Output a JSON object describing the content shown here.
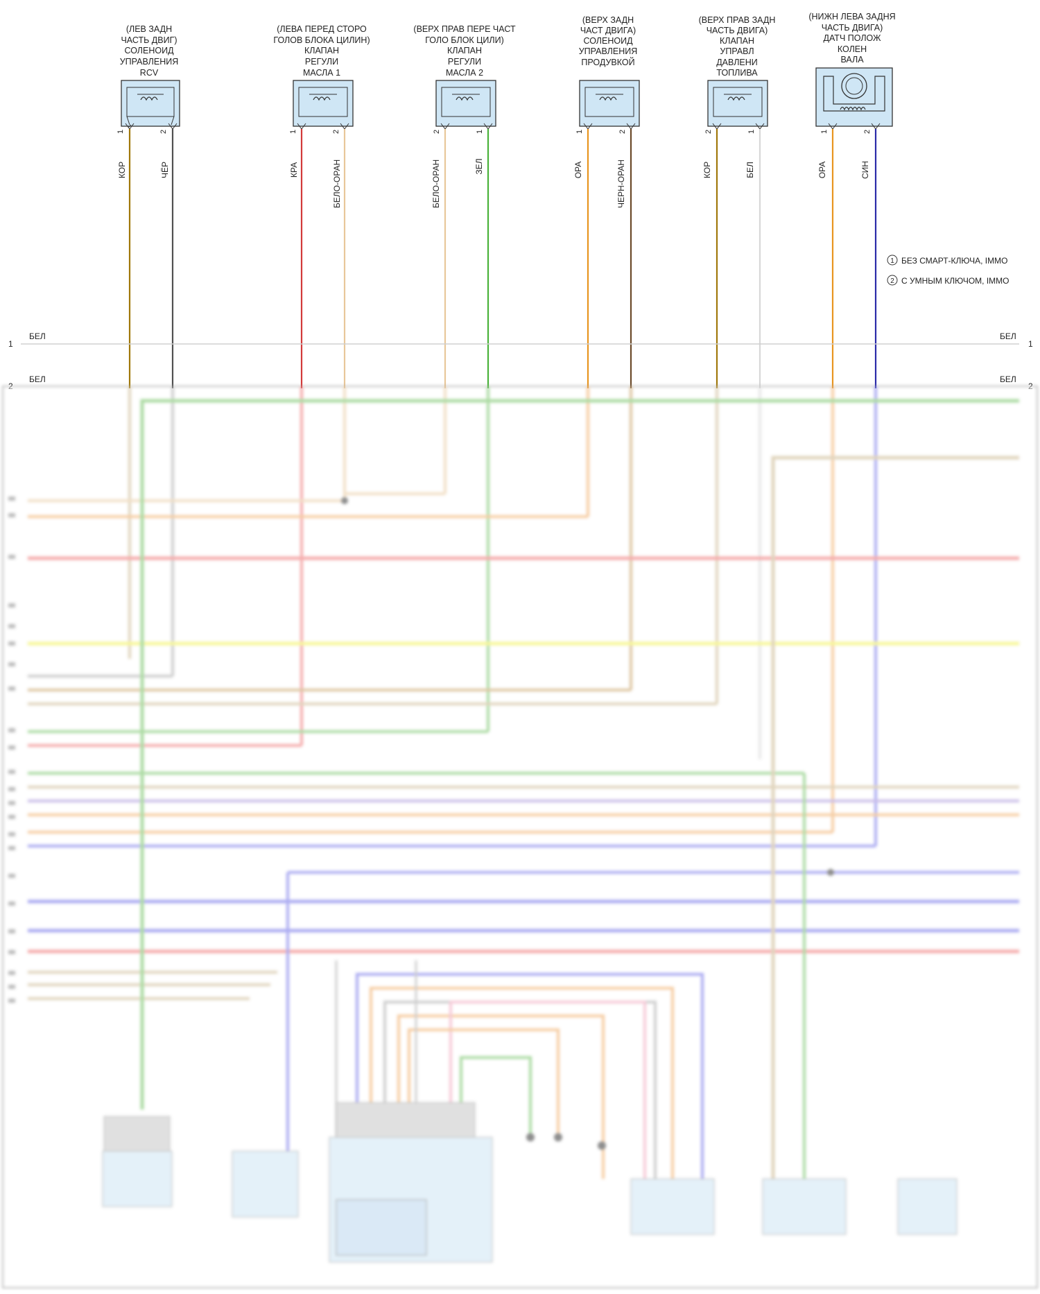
{
  "components": [
    {
      "id": "c1",
      "lines": [
        "(ЛЕВ ЗАДН",
        "ЧАСТЬ ДВИГ)",
        "СОЛЕНОИД",
        "УПРАВЛЕНИЯ",
        "RCV"
      ],
      "pins": [
        "1",
        "2"
      ],
      "wires": [
        {
          "label": "КОР",
          "color": "#a0780a"
        },
        {
          "label": "ЧЁР",
          "color": "#505050"
        }
      ]
    },
    {
      "id": "c2",
      "lines": [
        "(ЛЕВА ПЕРЕД СТОРО",
        "ГОЛОВ БЛОКА ЦИЛИН)",
        "КЛАПАН",
        "РЕГУЛИ",
        "МАСЛА 1"
      ],
      "pins": [
        "1",
        "2"
      ],
      "wires": [
        {
          "label": "КРА",
          "color": "#d23a3a"
        },
        {
          "label": "БЕЛО-ОРАН",
          "color": "#e8c79a"
        }
      ]
    },
    {
      "id": "c3",
      "lines": [
        "(ВЕРХ ПРАВ ПЕРЕ ЧАСТ",
        "ГОЛО БЛОК ЦИЛИ)",
        "КЛАПАН",
        "РЕГУЛИ",
        "МАСЛА 2"
      ],
      "pins": [
        "2",
        "1"
      ],
      "wires": [
        {
          "label": "БЕЛО-ОРАН",
          "color": "#e8c79a"
        },
        {
          "label": "ЗЕЛ",
          "color": "#4ab23a"
        }
      ]
    },
    {
      "id": "c4",
      "lines": [
        "(ВЕРХ ЗАДН",
        "ЧАСТ ДВИГА)",
        "СОЛЕНОИД",
        "УПРАВЛЕНИЯ",
        "ПРОДУВКОЙ"
      ],
      "pins": [
        "1",
        "2"
      ],
      "wires": [
        {
          "label": "ОРА",
          "color": "#e8951f"
        },
        {
          "label": "ЧЕРН-ОРАН",
          "color": "#6b4a2a"
        }
      ]
    },
    {
      "id": "c5",
      "lines": [
        "(ВЕРХ ПРАВ ЗАДН",
        "ЧАСТЬ ДВИГА)",
        "КЛАПАН",
        "УПРАВЛ",
        "ДАВЛЕНИ",
        "ТОПЛИВА"
      ],
      "pins": [
        "2",
        "1"
      ],
      "wires": [
        {
          "label": "КОР",
          "color": "#a0780a"
        },
        {
          "label": "БЕЛ",
          "color": "#d8d8d8"
        }
      ]
    },
    {
      "id": "c6",
      "lines": [
        "(НИЖН ЛЕВА ЗАДНЯ",
        "ЧАСТЬ ДВИГА)",
        "ДАТЧ ПОЛОЖ",
        "КОЛЕН",
        "ВАЛА"
      ],
      "pins": [
        "1",
        "2"
      ],
      "wires": [
        {
          "label": "ОРА",
          "color": "#e8951f"
        },
        {
          "label": "СИН",
          "color": "#2a2aa8"
        }
      ]
    }
  ],
  "legend": [
    {
      "num": "1",
      "text": "БЕЗ СМАРТ-КЛЮЧА, IMMO"
    },
    {
      "num": "2",
      "text": "С УМНЫМ КЛЮЧОМ, IMMO"
    }
  ],
  "bus": [
    {
      "num": "1",
      "label": "БЕЛ"
    },
    {
      "num": "2",
      "label": "БЕЛ"
    }
  ],
  "colors": {
    "tan": "#c9b48a",
    "green": "#6cc05c",
    "red": "#ee6b6b",
    "orange": "#f0a55a",
    "yellow": "#f2f24a",
    "blue": "#6a6ae8",
    "violet": "#a08ad8",
    "brown": "#c49a5a",
    "gray": "#a8a8a8",
    "pink": "#f0a0b8",
    "lightblue": "#cfe6f5"
  }
}
